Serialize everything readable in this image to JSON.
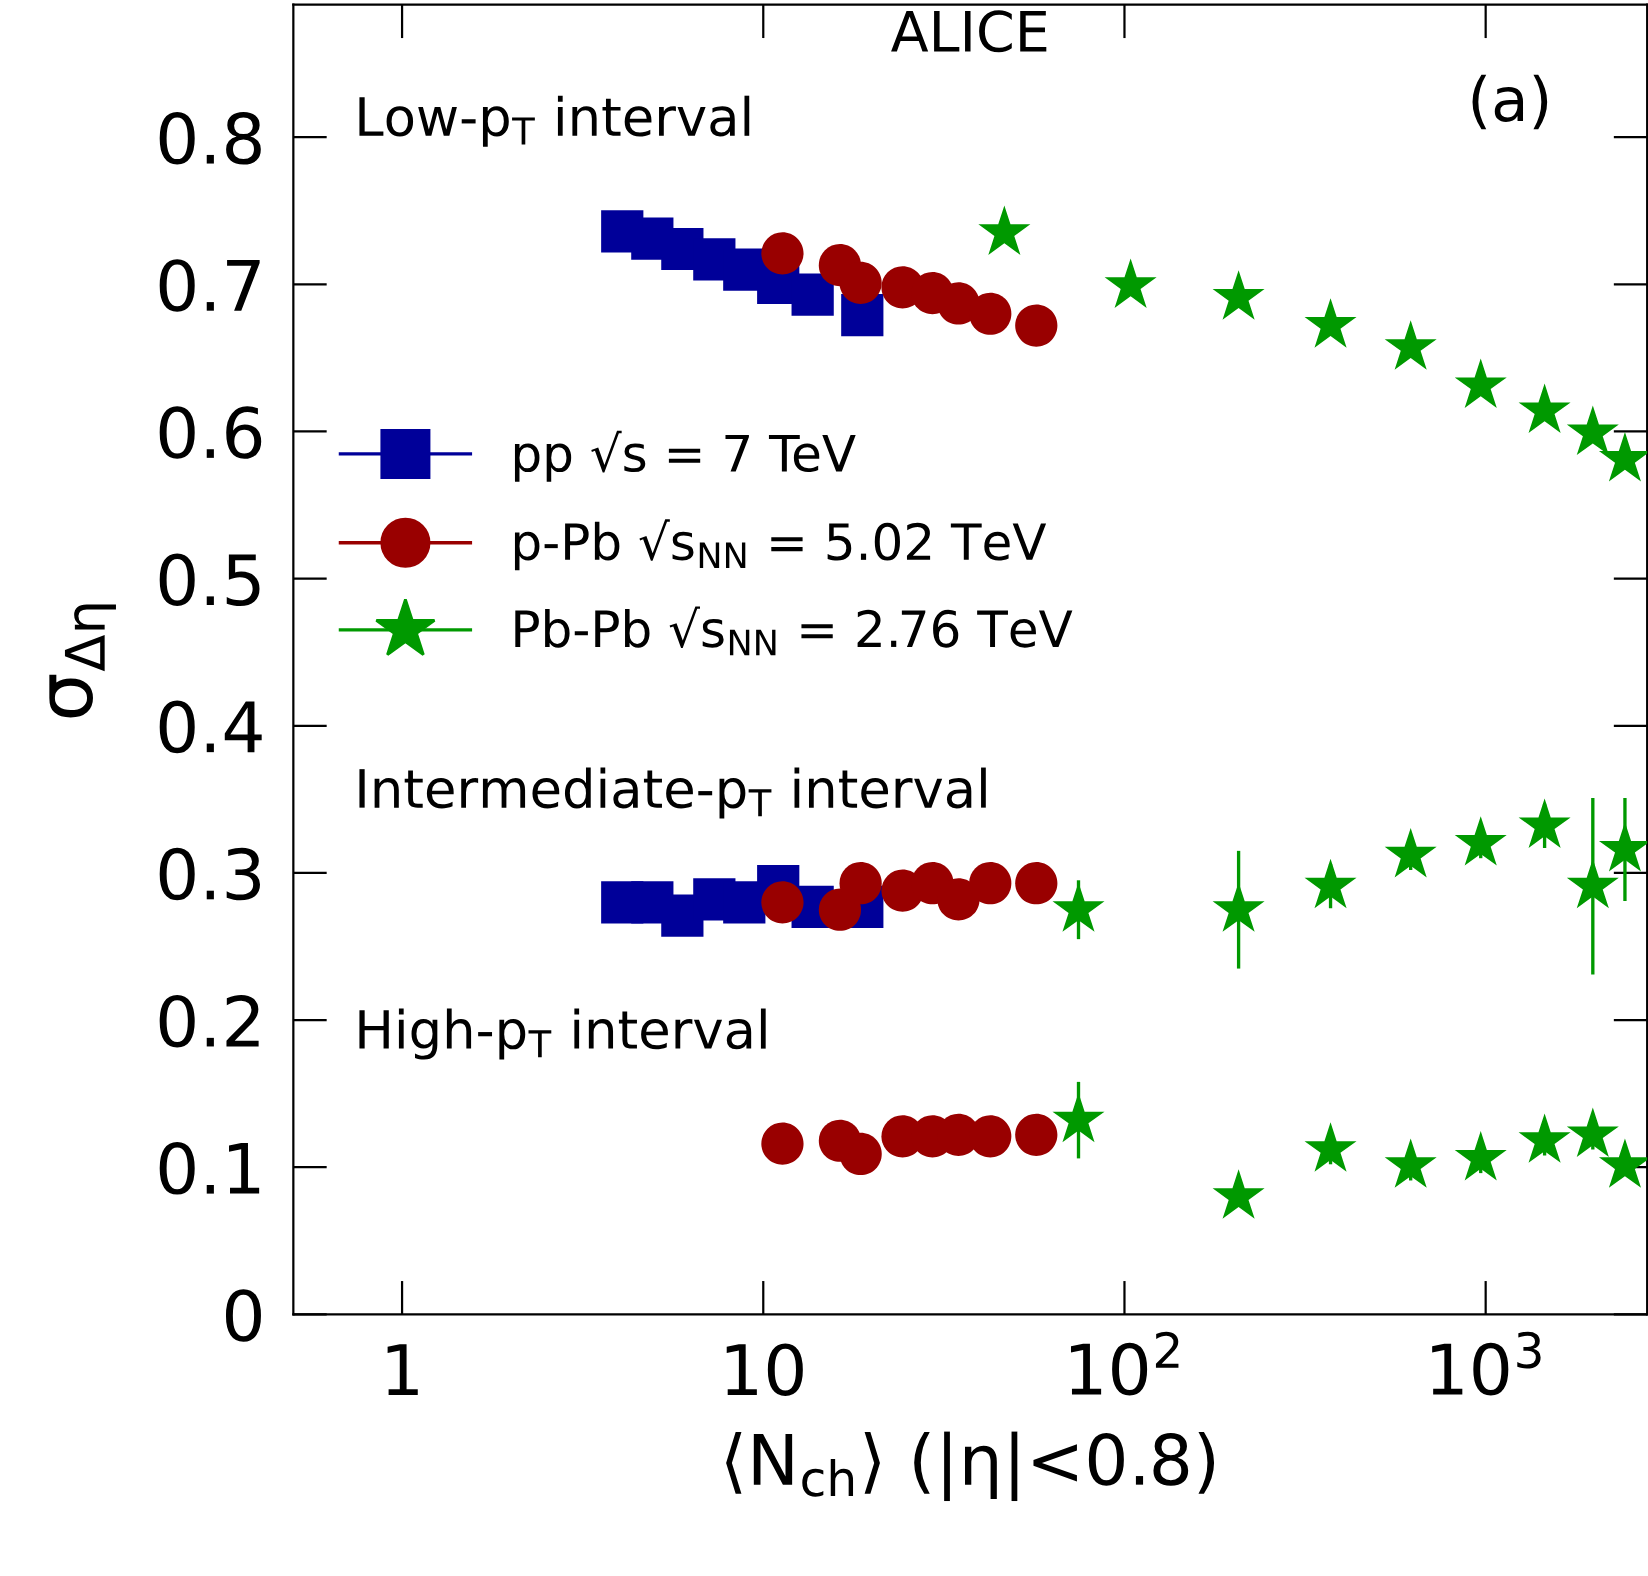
{
  "chart_data": {
    "type": "scatter",
    "xlabel": "⟨N$_{ch}$⟩ (|η|<0.8)",
    "ylabel": "σ$_{Δη}$",
    "log": "x",
    "xlim": [
      0.5,
      2800
    ],
    "xticks": [
      1,
      10,
      {
        "value": 100,
        "label": "10$^{2}$"
      },
      {
        "value": 1000,
        "label": "10$^{3}$"
      }
    ],
    "ylim": [
      0,
      0.89
    ],
    "yticks": [
      0,
      0.1,
      0.2,
      0.3,
      0.4,
      0.5,
      0.6,
      0.7,
      0.8
    ],
    "grid": false,
    "legend": "left",
    "annotations": [
      "ALICE",
      "(a)",
      "Low-p$_{T}$ interval",
      "Intermediate-p$_{T}$ interval",
      "High-p$_{T}$ interval"
    ],
    "series": [
      {
        "name": "pp √s = 7 TeV",
        "color": "#000099",
        "marker": "square",
        "x": [
          4.07,
          4.93,
          5.97,
          7.32,
          8.86,
          11.0,
          13.7,
          18.8
        ],
        "values": [
          0.736,
          0.731,
          0.724,
          0.717,
          0.71,
          0.701,
          0.693,
          0.679
        ]
      },
      {
        "name": "p-Pb √s$_{NN}$ = 5.02 TeV",
        "color": "#990000",
        "marker": "circle",
        "x": [
          11.3,
          16.3,
          18.6,
          24.3,
          29.4,
          34.7,
          42.5,
          57.0
        ],
        "values": [
          0.721,
          0.713,
          0.701,
          0.698,
          0.694,
          0.687,
          0.68,
          0.672
        ]
      },
      {
        "name": "Pb-Pb √s$_{NN}$ = 2.76 TeV",
        "color": "#009900",
        "marker": "star",
        "x": [
          46.5,
          104,
          207,
          372,
          620,
          969,
          1456,
          1980,
          2430
        ],
        "values": [
          0.735,
          0.699,
          0.691,
          0.672,
          0.657,
          0.631,
          0.614,
          0.599,
          0.581
        ]
      },
      {
        "color": "#000099",
        "marker": "square",
        "x": [
          4.07,
          4.93,
          5.97,
          7.32,
          8.86,
          11.0,
          13.7,
          18.8
        ],
        "values": [
          0.28,
          0.28,
          0.271,
          0.282,
          0.28,
          0.291,
          0.277,
          0.277
        ]
      },
      {
        "color": "#990000",
        "marker": "circle",
        "x": [
          11.3,
          16.3,
          18.6,
          24.3,
          29.4,
          34.7,
          42.5,
          57.0
        ],
        "values": [
          0.28,
          0.275,
          0.293,
          0.288,
          0.293,
          0.282,
          0.293,
          0.293
        ],
        "errors": [
          0.012,
          0.012,
          0.012,
          0.012,
          0.012,
          0.012,
          0.01,
          0.01
        ]
      },
      {
        "color": "#009900",
        "marker": "star",
        "x": [
          74.6,
          207,
          372,
          620,
          969,
          1456,
          1980,
          2430
        ],
        "values": [
          0.275,
          0.275,
          0.291,
          0.312,
          0.32,
          0.332,
          0.291,
          0.316
        ],
        "errors": [
          0.02,
          0.04,
          0.015,
          0.01,
          0.01,
          0.015,
          0.06,
          0.035
        ]
      },
      {
        "color": "#990000",
        "marker": "circle",
        "x": [
          11.3,
          16.3,
          18.6,
          24.3,
          29.4,
          34.7,
          42.5,
          57.0
        ],
        "values": [
          0.116,
          0.118,
          0.109,
          0.121,
          0.121,
          0.122,
          0.121,
          0.122
        ]
      },
      {
        "color": "#009900",
        "marker": "star",
        "x": [
          74.6,
          207,
          372,
          620,
          969,
          1456,
          1980,
          2430
        ],
        "values": [
          0.132,
          0.08,
          0.112,
          0.101,
          0.106,
          0.118,
          0.122,
          0.101
        ],
        "errors": [
          0.026,
          null,
          0.01,
          0.01,
          0.01,
          0.01,
          0.01,
          null
        ]
      }
    ]
  }
}
